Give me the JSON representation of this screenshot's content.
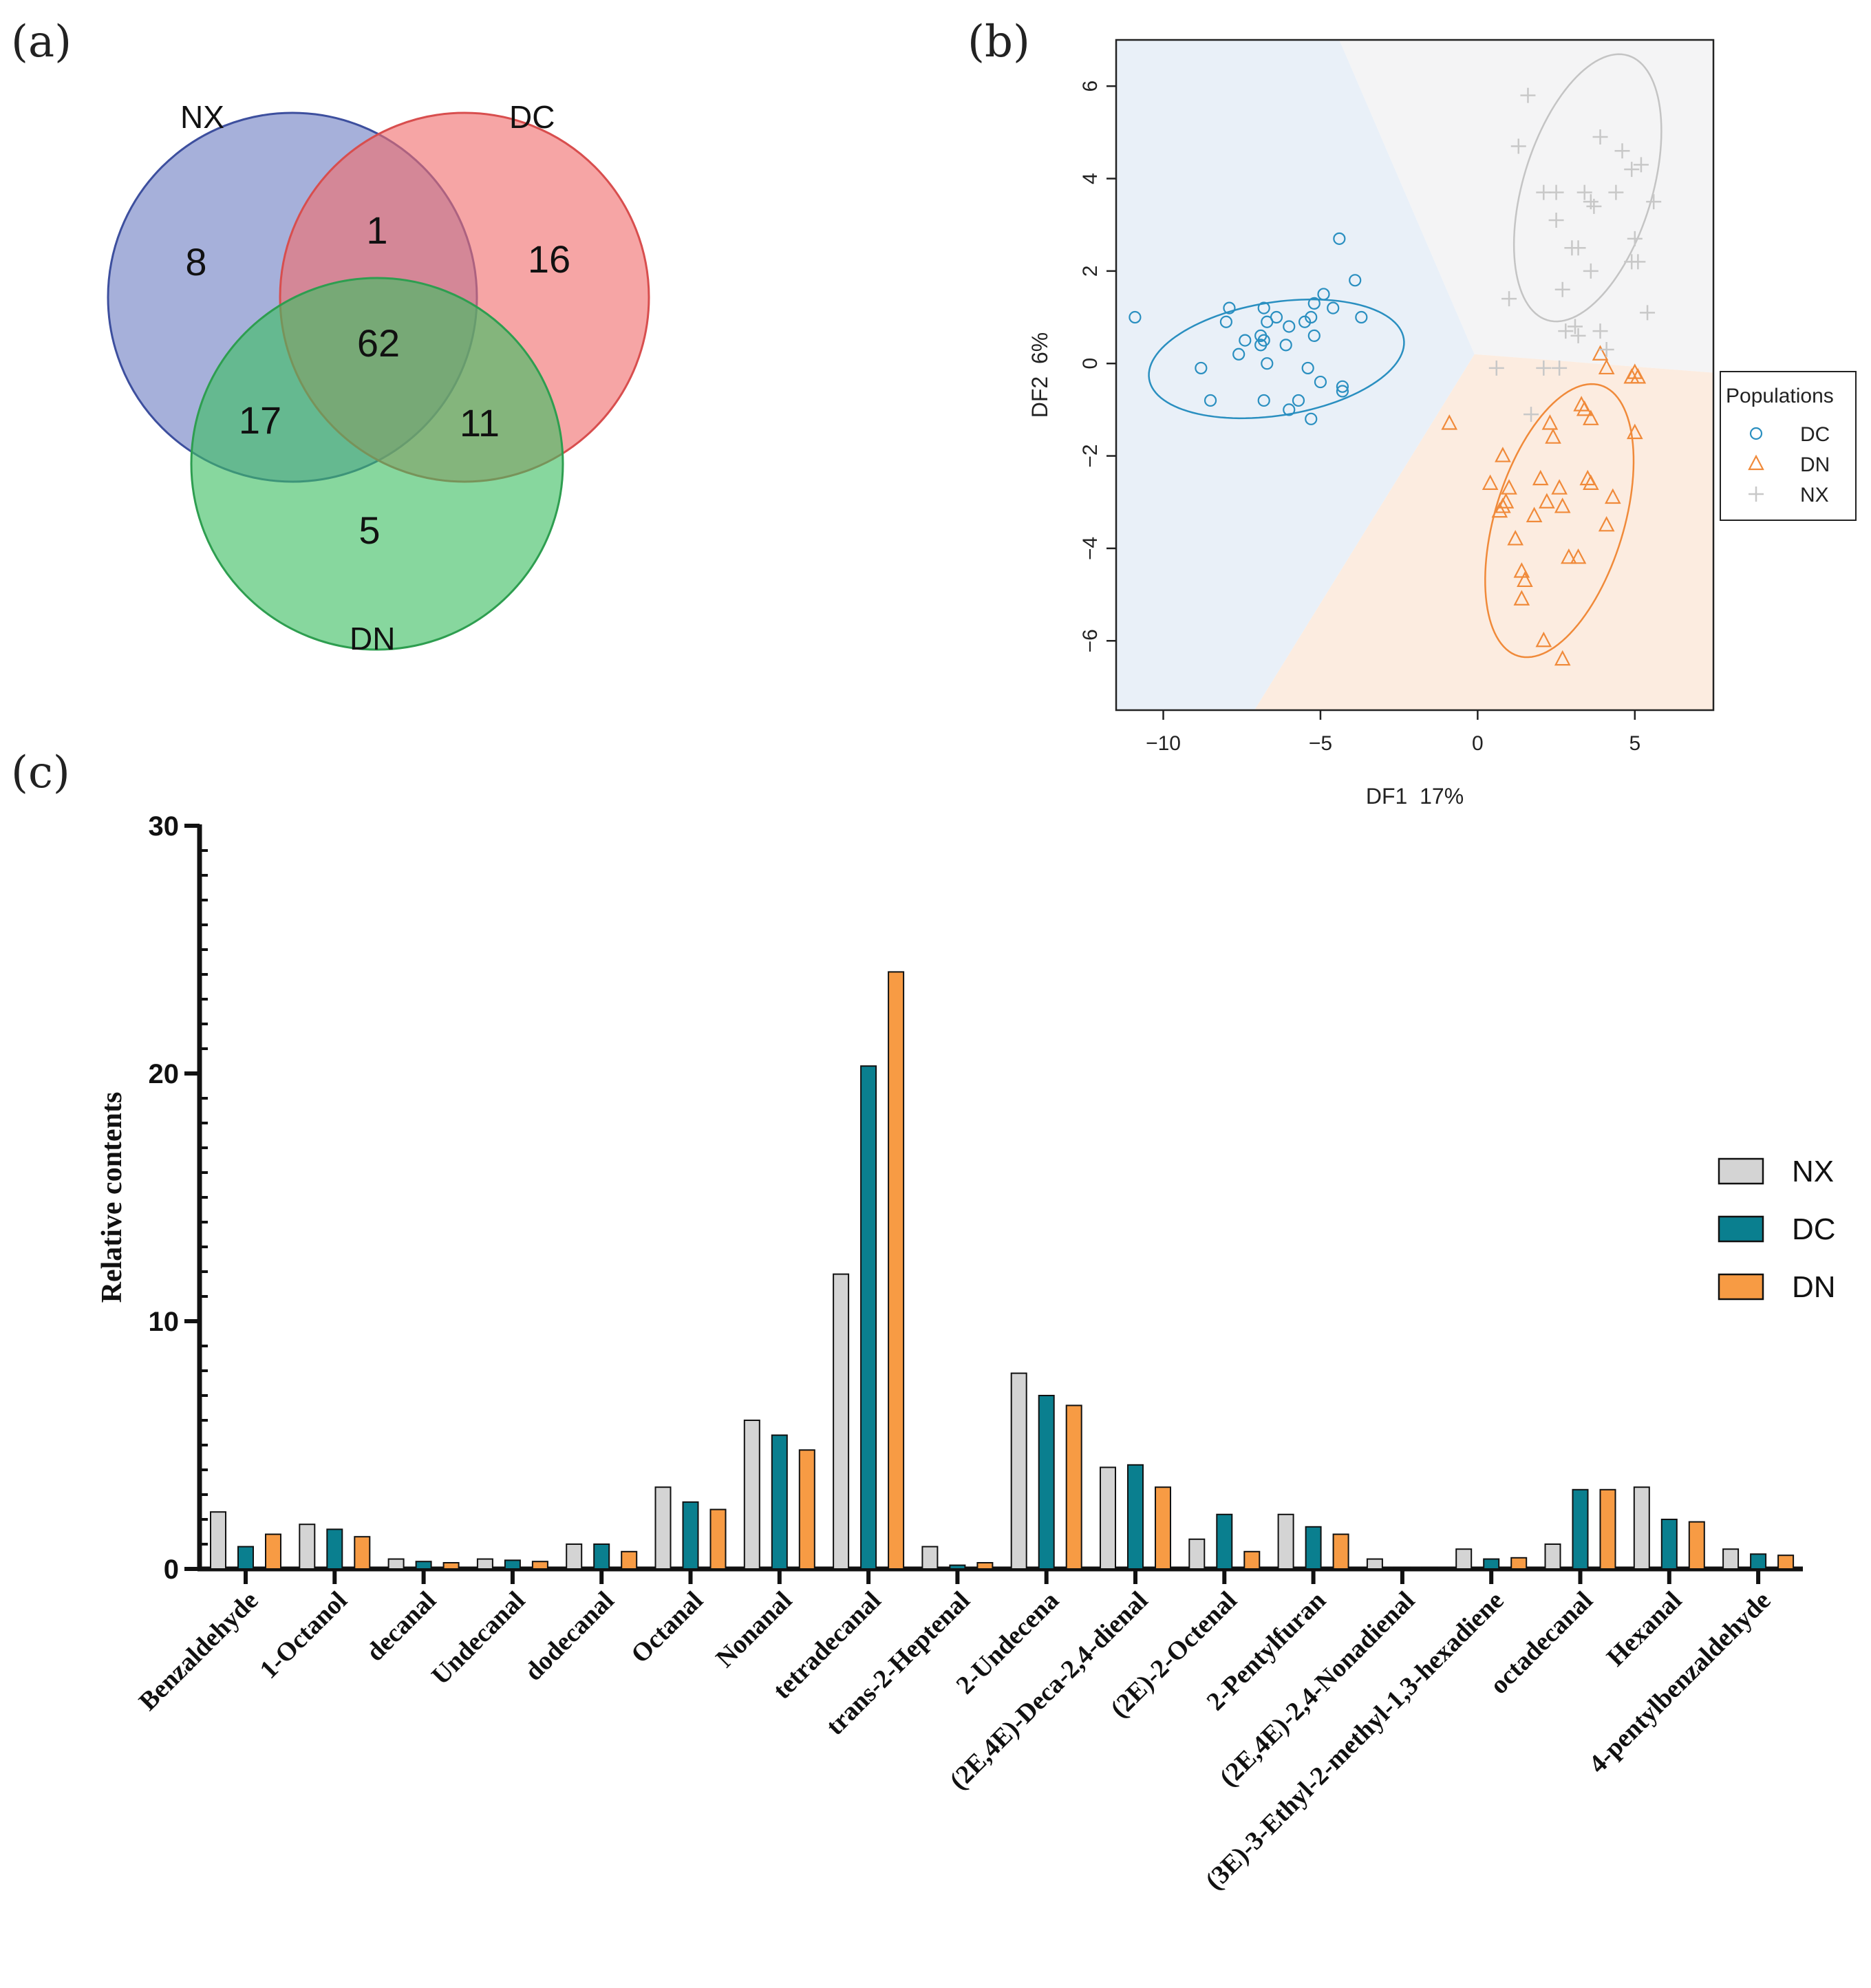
{
  "panels": {
    "a_label": "(a)",
    "b_label": "(b)",
    "c_label": "(c)"
  },
  "chart_data": [
    {
      "type": "venn",
      "sets": [
        "NX",
        "DC",
        "DN"
      ],
      "regions": {
        "NX_only": 8,
        "DC_only": 16,
        "DN_only": 5,
        "NX_DC": 1,
        "NX_DN": 17,
        "DC_DN": 11,
        "NX_DC_DN": 62
      },
      "colors": {
        "NX": "#6f7fc4",
        "DC": "#f06e6e",
        "DN": "#3dbe62"
      }
    },
    {
      "type": "scatter",
      "xlabel": "DF1  17%",
      "ylabel": "DF2  6%",
      "xlim": [
        -11.5,
        7.5
      ],
      "ylim": [
        -7.5,
        7
      ],
      "xticks": [
        -10,
        -5,
        0,
        5
      ],
      "xtick_labels": [
        "−10",
        "−5",
        "0",
        "5"
      ],
      "yticks": [
        -6,
        -4,
        -2,
        0,
        2,
        4,
        6
      ],
      "ytick_labels": [
        "−6",
        "−4",
        "−2",
        "0",
        "2",
        "4",
        "6"
      ],
      "grid": false,
      "legend_title": "Populations",
      "legend_position": "right",
      "series": [
        {
          "name": "DC",
          "marker": "circle",
          "color": "#2a8fc0",
          "points": [
            [
              -10.9,
              1.0
            ],
            [
              -8.8,
              -0.1
            ],
            [
              -8.5,
              -0.8
            ],
            [
              -8.0,
              0.9
            ],
            [
              -7.9,
              1.2
            ],
            [
              -7.6,
              0.2
            ],
            [
              -7.4,
              0.5
            ],
            [
              -6.9,
              0.6
            ],
            [
              -6.9,
              0.4
            ],
            [
              -6.8,
              1.2
            ],
            [
              -6.7,
              0.9
            ],
            [
              -6.7,
              0.0
            ],
            [
              -6.4,
              1.0
            ],
            [
              -6.1,
              0.4
            ],
            [
              -6.0,
              0.8
            ],
            [
              -5.7,
              -0.8
            ],
            [
              -5.5,
              0.9
            ],
            [
              -5.4,
              -0.1
            ],
            [
              -5.3,
              1.0
            ],
            [
              -5.2,
              1.3
            ],
            [
              -5.2,
              0.6
            ],
            [
              -5.0,
              -0.4
            ],
            [
              -4.9,
              1.5
            ],
            [
              -4.6,
              1.2
            ],
            [
              -4.4,
              2.7
            ],
            [
              -4.3,
              -0.6
            ],
            [
              -4.3,
              -0.5
            ],
            [
              -3.9,
              1.8
            ],
            [
              -3.7,
              1.0
            ],
            [
              -6.8,
              -0.8
            ],
            [
              -6.0,
              -1.0
            ],
            [
              -5.3,
              -1.2
            ],
            [
              -6.8,
              0.5
            ]
          ]
        },
        {
          "name": "DN",
          "marker": "triangle",
          "color": "#f08a3a",
          "points": [
            [
              -0.9,
              -1.3
            ],
            [
              0.4,
              -2.6
            ],
            [
              0.8,
              -2.0
            ],
            [
              0.8,
              -3.1
            ],
            [
              0.9,
              -3.0
            ],
            [
              1.0,
              -2.7
            ],
            [
              1.2,
              -3.8
            ],
            [
              1.4,
              -4.5
            ],
            [
              1.4,
              -5.1
            ],
            [
              1.5,
              -4.7
            ],
            [
              1.8,
              -3.3
            ],
            [
              2.0,
              -2.5
            ],
            [
              2.1,
              -6.0
            ],
            [
              2.2,
              -3.0
            ],
            [
              2.3,
              -1.3
            ],
            [
              2.4,
              -1.6
            ],
            [
              2.6,
              -2.7
            ],
            [
              2.7,
              -3.1
            ],
            [
              2.7,
              -6.4
            ],
            [
              2.9,
              -4.2
            ],
            [
              3.2,
              -4.2
            ],
            [
              3.3,
              -0.9
            ],
            [
              3.4,
              -1.0
            ],
            [
              3.5,
              -2.5
            ],
            [
              3.6,
              -2.6
            ],
            [
              3.6,
              -1.2
            ],
            [
              4.1,
              -3.5
            ],
            [
              4.3,
              -2.9
            ],
            [
              4.9,
              -0.3
            ],
            [
              5.0,
              -0.2
            ],
            [
              5.0,
              -1.5
            ],
            [
              4.1,
              -0.1
            ],
            [
              0.7,
              -3.2
            ],
            [
              3.9,
              0.2
            ],
            [
              5.1,
              -0.3
            ]
          ]
        },
        {
          "name": "NX",
          "marker": "plus",
          "color": "#c8c8c8",
          "points": [
            [
              0.6,
              -0.1
            ],
            [
              1.0,
              1.4
            ],
            [
              1.6,
              5.8
            ],
            [
              1.7,
              -1.1
            ],
            [
              2.1,
              3.7
            ],
            [
              2.5,
              3.1
            ],
            [
              2.5,
              3.7
            ],
            [
              2.6,
              -0.1
            ],
            [
              2.7,
              1.6
            ],
            [
              2.8,
              0.7
            ],
            [
              3.0,
              2.5
            ],
            [
              3.1,
              0.8
            ],
            [
              3.2,
              2.5
            ],
            [
              3.2,
              0.6
            ],
            [
              3.4,
              3.7
            ],
            [
              3.6,
              2.0
            ],
            [
              3.6,
              3.5
            ],
            [
              3.7,
              3.4
            ],
            [
              3.9,
              4.9
            ],
            [
              4.1,
              0.3
            ],
            [
              4.4,
              3.7
            ],
            [
              4.6,
              4.6
            ],
            [
              4.9,
              4.2
            ],
            [
              4.9,
              2.2
            ],
            [
              5.0,
              2.7
            ],
            [
              5.1,
              2.2
            ],
            [
              5.2,
              4.3
            ],
            [
              5.4,
              1.1
            ],
            [
              5.6,
              3.5
            ],
            [
              1.3,
              4.7
            ],
            [
              2.1,
              -0.1
            ],
            [
              3.9,
              0.7
            ]
          ]
        }
      ]
    },
    {
      "type": "bar",
      "ylabel": "Relative contents",
      "ylim": [
        0,
        30
      ],
      "yticks": [
        0,
        10,
        20,
        30
      ],
      "legend_position": "right",
      "categories": [
        "Benzaldehyde",
        "1-Octanol",
        "decanal",
        "Undecanal",
        "dodecanal",
        "Octanal",
        "Nonanal",
        "tetradecanal",
        "trans-2-Heptenal",
        "2-Undecena",
        "(2E,4E)-Deca-2,4-dienal",
        "(2E)-2-Octenal",
        "2-Pentylfuran",
        "(2E,4E)-2,4-Nonadienal",
        "(3E)-3-Ethyl-2-methyl-1,3-hexadiene",
        "octadecanal",
        "Hexanal",
        "4-pentylbenzaldehyde"
      ],
      "series": [
        {
          "name": "NX",
          "color": "#d4d4d4",
          "values": [
            2.3,
            1.8,
            0.4,
            0.4,
            1.0,
            3.3,
            6.0,
            11.9,
            0.9,
            7.9,
            4.1,
            1.2,
            2.2,
            0.4,
            0.8,
            1.0,
            3.3,
            0.8
          ]
        },
        {
          "name": "DC",
          "color": "#0a7f8f",
          "values": [
            0.9,
            1.6,
            0.3,
            0.35,
            1.0,
            2.7,
            5.4,
            20.3,
            0.15,
            7.0,
            4.2,
            2.2,
            1.7,
            0.05,
            0.4,
            3.2,
            2.0,
            0.6
          ]
        },
        {
          "name": "DN",
          "color": "#f79b44",
          "values": [
            1.4,
            1.3,
            0.25,
            0.3,
            0.7,
            2.4,
            4.8,
            24.1,
            0.25,
            6.6,
            3.3,
            0.7,
            1.4,
            0.05,
            0.45,
            3.2,
            1.9,
            0.55
          ]
        }
      ]
    }
  ]
}
